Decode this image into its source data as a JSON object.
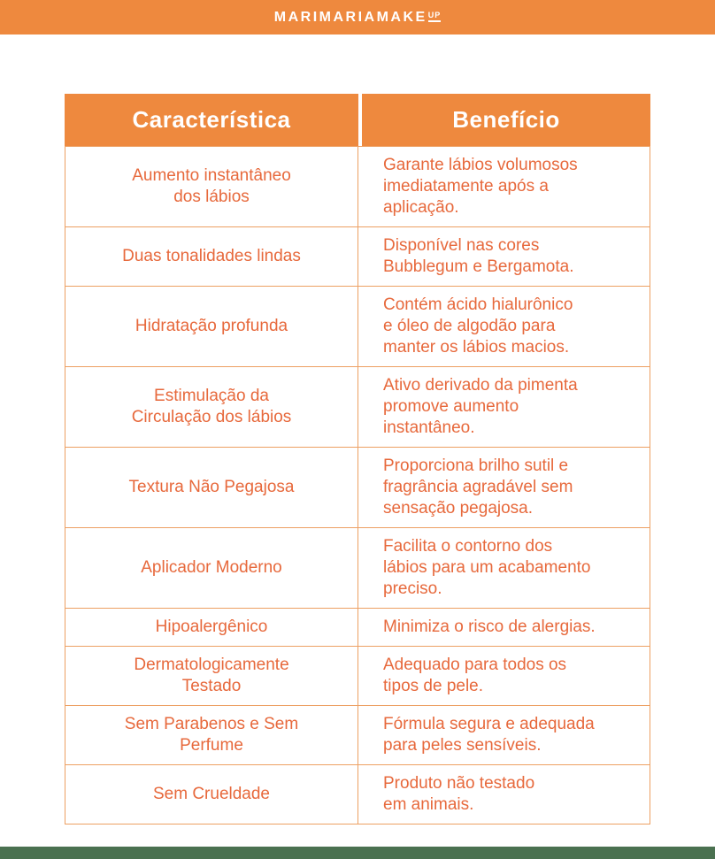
{
  "brand": {
    "name": "MARIMARIAMAKE",
    "suffix": "UP"
  },
  "colors": {
    "orange": "#EE893E",
    "text-orange": "#E7693C",
    "border-orange": "#EDA063",
    "green": "#4A7150"
  },
  "table": {
    "headers": [
      "Característica",
      "Benefício"
    ],
    "rows": [
      {
        "feature": "Aumento instantâneo\ndos lábios",
        "benefit": "Garante lábios volumosos\nimediatamente após a\naplicação."
      },
      {
        "feature": "Duas tonalidades lindas",
        "benefit": "Disponível nas cores\nBubblegum e Bergamota."
      },
      {
        "feature": "Hidratação profunda",
        "benefit": "Contém ácido hialurônico\ne óleo de algodão para\nmanter os lábios macios."
      },
      {
        "feature": "Estimulação da\nCirculação dos lábios",
        "benefit": "Ativo derivado da pimenta\npromove aumento\ninstantâneo."
      },
      {
        "feature": "Textura Não Pegajosa",
        "benefit": "Proporciona brilho sutil e\nfragrância agradável sem\nsensação pegajosa."
      },
      {
        "feature": "Aplicador Moderno",
        "benefit": "Facilita o contorno dos\nlábios para um acabamento\npreciso."
      },
      {
        "feature": "Hipoalergênico",
        "benefit": "Minimiza o risco de alergias."
      },
      {
        "feature": "Dermatologicamente\nTestado",
        "benefit": "Adequado para todos os\ntipos de pele."
      },
      {
        "feature": "Sem Parabenos e Sem\nPerfume",
        "benefit": "Fórmula segura e adequada\npara peles sensíveis."
      },
      {
        "feature": "Sem Crueldade",
        "benefit": "Produto não testado\nem animais."
      }
    ]
  }
}
